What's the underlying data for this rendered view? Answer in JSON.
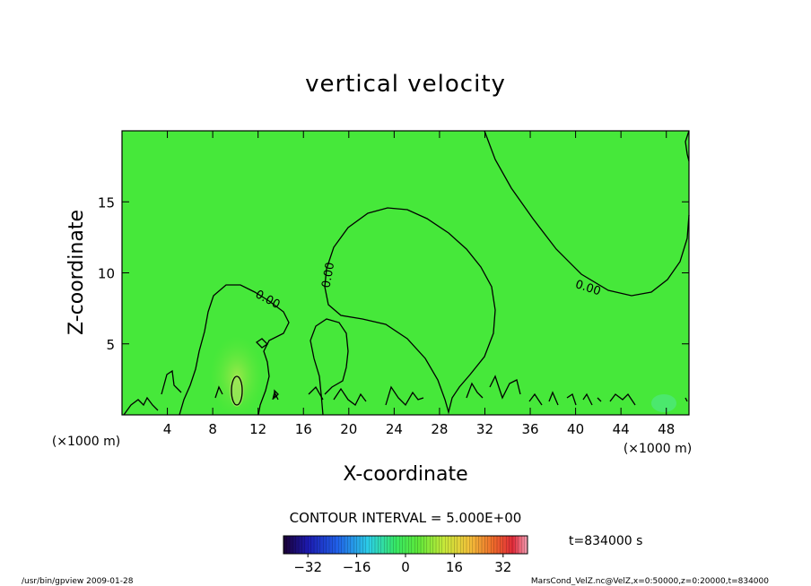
{
  "chart_data": {
    "type": "heatmap",
    "title": "vertical velocity",
    "xlabel": "X-coordinate",
    "ylabel": "Z-coordinate",
    "x_unit_left": "(×1000 m)",
    "x_unit_right": "(×1000 m)",
    "xlim": [
      0,
      50
    ],
    "ylim": [
      0,
      20
    ],
    "x_ticks": [
      4,
      8,
      12,
      16,
      20,
      24,
      28,
      32,
      36,
      40,
      44,
      48
    ],
    "y_ticks": [
      5,
      10,
      15
    ],
    "contour_interval_text": "CONTOUR INTERVAL = 5.000E+00",
    "contour_labels": [
      {
        "text": "0.00",
        "x": 12.7,
        "y": 7.9
      },
      {
        "text": "0.00",
        "x": 18.5,
        "y": 9.8
      },
      {
        "text": "0.00",
        "x": 41.0,
        "y": 8.7
      }
    ],
    "colorbar": {
      "min": -40,
      "max": 40,
      "ticks": [
        -32,
        -16,
        0,
        16,
        32
      ]
    },
    "time_label": "t=834000 s",
    "grid": false
  },
  "footer": {
    "left": "/usr/bin/gpview  2009-01-28",
    "right": "MarsCond_VelZ.nc@VelZ,x=0:50000,z=0:20000,t=834000"
  }
}
